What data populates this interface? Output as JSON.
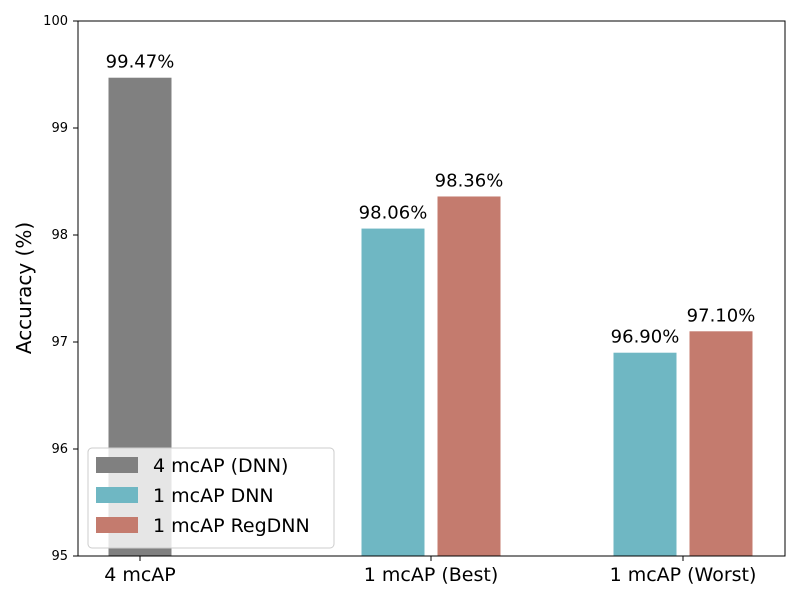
{
  "chart_data": {
    "type": "bar",
    "title": "",
    "xlabel": "",
    "ylabel": "Accuracy (%)",
    "ylim": [
      95,
      100
    ],
    "yticks": [
      95,
      96,
      97,
      98,
      99,
      100
    ],
    "categories": [
      "4 mcAP",
      "1 mcAP (Best)",
      "1 mcAP (Worst)"
    ],
    "grid": false,
    "legend_position": "bottom-left",
    "series": [
      {
        "name": "4 mcAP (DNN)",
        "color": "#808080",
        "values": [
          99.47,
          null,
          null
        ],
        "labels": [
          "99.47%",
          "",
          ""
        ]
      },
      {
        "name": "1 mcAP DNN",
        "color": "#6fb7c3",
        "values": [
          null,
          98.06,
          96.9
        ],
        "labels": [
          "",
          "98.06%",
          "96.90%"
        ]
      },
      {
        "name": "1 mcAP RegDNN",
        "color": "#c47b6e",
        "values": [
          null,
          98.36,
          97.1
        ],
        "labels": [
          "",
          "98.36%",
          "97.10%"
        ]
      }
    ]
  }
}
